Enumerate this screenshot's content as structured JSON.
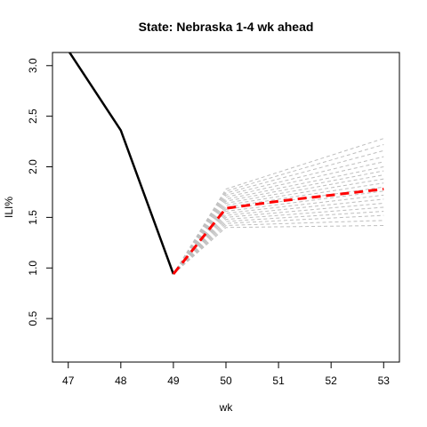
{
  "chart_data": {
    "type": "line",
    "title": "State: Nebraska 1-4 wk ahead",
    "xlabel": "wk",
    "ylabel": "ILI%",
    "xlim": [
      46.7,
      53.3
    ],
    "ylim": [
      0.07,
      3.13
    ],
    "x_ticks": [
      47,
      48,
      49,
      50,
      51,
      52,
      53
    ],
    "x_tick_labels": [
      "47",
      "48",
      "49",
      "50",
      "51",
      "52",
      "53"
    ],
    "y_ticks": [
      0.5,
      1.0,
      1.5,
      2.0,
      2.5,
      3.0
    ],
    "y_tick_labels": [
      "0.5",
      "1.0",
      "1.5",
      "2.0",
      "2.5",
      "3.0"
    ],
    "grid": false,
    "colors": {
      "observed": "#000000",
      "forecast_mean": "#ff0000",
      "trajectories": "#bebebe"
    },
    "observed": {
      "x": [
        46.9,
        47,
        48,
        49
      ],
      "y": [
        3.35,
        3.15,
        2.36,
        0.94
      ]
    },
    "forecast_mean": {
      "x": [
        49,
        50,
        51,
        52,
        53
      ],
      "y": [
        0.94,
        1.59,
        1.66,
        1.72,
        1.78
      ]
    },
    "trajectories": {
      "x": [
        49,
        50,
        51,
        52,
        53
      ],
      "end_values_wk50": [
        1.78,
        1.76,
        1.74,
        1.72,
        1.7,
        1.68,
        1.66,
        1.64,
        1.62,
        1.6,
        1.58,
        1.56,
        1.54,
        1.52,
        1.5,
        1.48,
        1.46,
        1.44,
        1.42,
        1.4
      ],
      "end_values_wk53": [
        2.28,
        2.22,
        2.16,
        2.1,
        2.05,
        2.0,
        1.96,
        1.92,
        1.88,
        1.84,
        1.8,
        1.76,
        1.72,
        1.68,
        1.64,
        1.6,
        1.56,
        1.52,
        1.47,
        1.42
      ]
    }
  }
}
